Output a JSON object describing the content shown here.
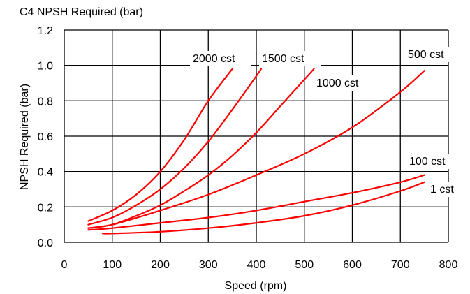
{
  "chart_data": {
    "type": "line",
    "title": "C4 NPSH Required  (bar)",
    "xlabel": "Speed (rpm)",
    "ylabel": "NPSH Required (bar)",
    "xlim": [
      0,
      800
    ],
    "ylim": [
      0,
      1.2
    ],
    "x_ticks": [
      "0",
      "100",
      "200",
      "300",
      "400",
      "500",
      "600",
      "700",
      "800"
    ],
    "y_ticks": [
      "0.0",
      "0.2",
      "0.4",
      "0.6",
      "0.8",
      "1.0",
      "1.2"
    ],
    "grid": true,
    "line_color": "#ff0000",
    "series": [
      {
        "name": "2000 cst",
        "x": [
          50,
          100,
          150,
          200,
          250,
          300,
          350
        ],
        "y": [
          0.12,
          0.18,
          0.27,
          0.4,
          0.58,
          0.8,
          0.98
        ]
      },
      {
        "name": "1500 cst",
        "x": [
          50,
          100,
          150,
          200,
          250,
          300,
          350,
          400,
          410
        ],
        "y": [
          0.1,
          0.14,
          0.21,
          0.3,
          0.42,
          0.57,
          0.75,
          0.94,
          0.98
        ]
      },
      {
        "name": "1000 cst",
        "x": [
          50,
          100,
          150,
          200,
          250,
          300,
          350,
          400,
          450,
          500,
          520
        ],
        "y": [
          0.08,
          0.1,
          0.15,
          0.21,
          0.29,
          0.38,
          0.49,
          0.62,
          0.77,
          0.92,
          0.98
        ]
      },
      {
        "name": "500 cst",
        "x": [
          50,
          100,
          200,
          300,
          400,
          500,
          600,
          700,
          750
        ],
        "y": [
          0.08,
          0.1,
          0.18,
          0.27,
          0.38,
          0.5,
          0.65,
          0.85,
          0.97
        ]
      },
      {
        "name": "100 cst",
        "x": [
          50,
          100,
          200,
          300,
          400,
          500,
          600,
          700,
          750
        ],
        "y": [
          0.07,
          0.08,
          0.11,
          0.14,
          0.18,
          0.23,
          0.28,
          0.34,
          0.38
        ]
      },
      {
        "name": "1 cst",
        "x": [
          80,
          100,
          200,
          300,
          400,
          500,
          600,
          700,
          750
        ],
        "y": [
          0.05,
          0.05,
          0.06,
          0.08,
          0.11,
          0.15,
          0.21,
          0.29,
          0.34
        ]
      }
    ]
  }
}
